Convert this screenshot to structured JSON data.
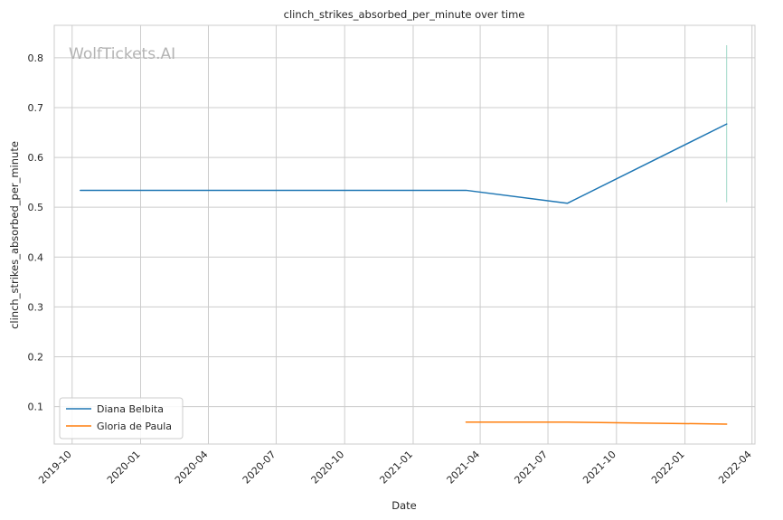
{
  "chart_data": {
    "type": "line",
    "title": "clinch_strikes_absorbed_per_minute over time",
    "xlabel": "Date",
    "ylabel": "clinch_strikes_absorbed_per_minute",
    "watermark": "WolfTickets.AI",
    "x_axis": {
      "kind": "date",
      "range": [
        "2019-09-07",
        "2022-04-05"
      ],
      "ticks": [
        "2019-10-01",
        "2020-01-01",
        "2020-04-01",
        "2020-07-01",
        "2020-10-01",
        "2021-01-01",
        "2021-04-01",
        "2021-07-01",
        "2021-10-01",
        "2022-01-01",
        "2022-04-01"
      ],
      "tick_labels": [
        "2019-10",
        "2020-01",
        "2020-04",
        "2020-07",
        "2020-10",
        "2021-01",
        "2021-04",
        "2021-07",
        "2021-10",
        "2022-01",
        "2022-04"
      ]
    },
    "y_axis": {
      "range": [
        0.025,
        0.865
      ],
      "ticks": [
        0.1,
        0.2,
        0.3,
        0.4,
        0.5,
        0.6,
        0.7,
        0.8
      ],
      "tick_labels": [
        "0.1",
        "0.2",
        "0.3",
        "0.4",
        "0.5",
        "0.6",
        "0.7",
        "0.8"
      ]
    },
    "grid": true,
    "legend_position": "bottom-left",
    "series": [
      {
        "name": "Diana Belbita",
        "color": "#1f77b4",
        "points": [
          {
            "x": "2019-10-12",
            "y": 0.534
          },
          {
            "x": "2021-03-13",
            "y": 0.534
          },
          {
            "x": "2021-07-27",
            "y": 0.508
          },
          {
            "x": "2022-02-26",
            "y": 0.667
          }
        ]
      },
      {
        "name": "Gloria de Paula",
        "color": "#ff7f0e",
        "points": [
          {
            "x": "2021-03-13",
            "y": 0.069
          },
          {
            "x": "2021-07-27",
            "y": 0.069
          },
          {
            "x": "2022-02-26",
            "y": 0.065
          }
        ]
      }
    ],
    "annotations": [
      {
        "type": "vertical-range",
        "x": "2022-02-26",
        "y_from": 0.51,
        "y_to": 0.825,
        "color": "#9fd8c8"
      }
    ]
  }
}
